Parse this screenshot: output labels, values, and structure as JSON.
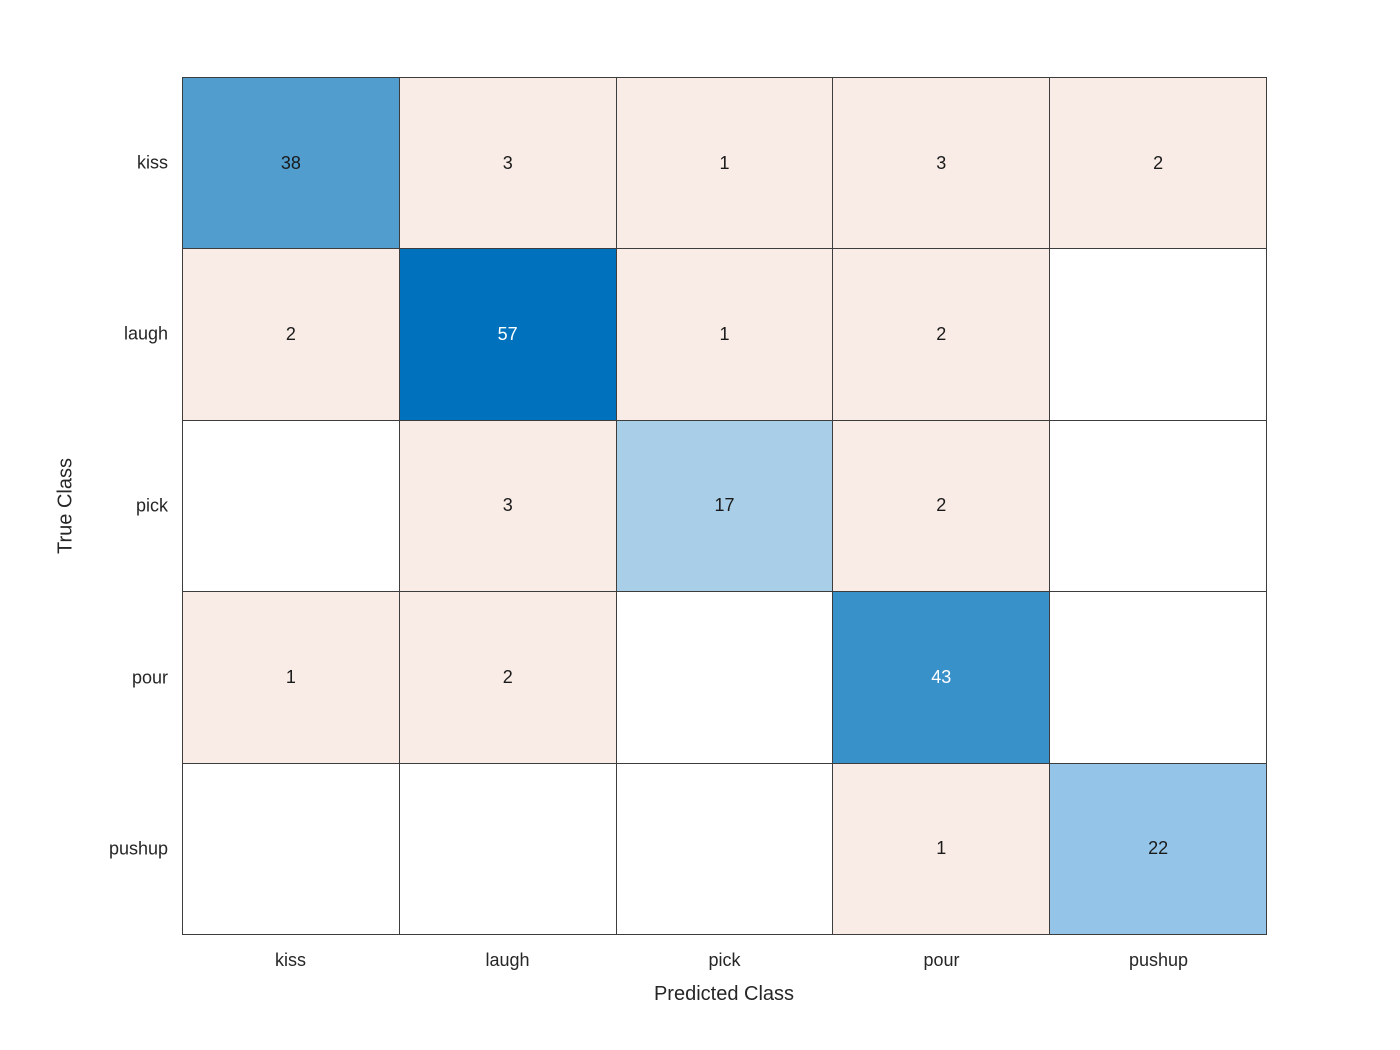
{
  "chart_data": {
    "type": "heatmap",
    "subtype": "confusion-matrix",
    "title": "",
    "xlabel": "Predicted Class",
    "ylabel": "True Class",
    "classes": [
      "kiss",
      "laugh",
      "pick",
      "pour",
      "pushup"
    ],
    "rows_are": "true-class",
    "columns_are": "predicted-class",
    "matrix": [
      [
        38,
        3,
        1,
        3,
        2
      ],
      [
        2,
        57,
        1,
        2,
        null
      ],
      [
        null,
        3,
        17,
        2,
        null
      ],
      [
        1,
        2,
        null,
        43,
        null
      ],
      [
        null,
        null,
        null,
        1,
        22
      ]
    ],
    "cell_colors": [
      [
        "#509dce",
        "#f9ece6",
        "#f9ece6",
        "#f9ece6",
        "#f9ece6"
      ],
      [
        "#f9ece6",
        "#0072bd",
        "#f9ece6",
        "#f9ece6",
        "#ffffff"
      ],
      [
        "#ffffff",
        "#f9ece6",
        "#a9cfe8",
        "#f9ece6",
        "#ffffff"
      ],
      [
        "#f9ece6",
        "#f9ece6",
        "#ffffff",
        "#3991c9",
        "#ffffff"
      ],
      [
        "#ffffff",
        "#ffffff",
        "#ffffff",
        "#f9ece6",
        "#94c5e8"
      ]
    ],
    "text_colors": [
      [
        "#1a1a1a",
        "#1a1a1a",
        "#1a1a1a",
        "#1a1a1a",
        "#1a1a1a"
      ],
      [
        "#1a1a1a",
        "#ffffff",
        "#1a1a1a",
        "#1a1a1a",
        "#1a1a1a"
      ],
      [
        "#1a1a1a",
        "#1a1a1a",
        "#1a1a1a",
        "#1a1a1a",
        "#1a1a1a"
      ],
      [
        "#1a1a1a",
        "#1a1a1a",
        "#1a1a1a",
        "#ffffff",
        "#1a1a1a"
      ],
      [
        "#1a1a1a",
        "#1a1a1a",
        "#1a1a1a",
        "#1a1a1a",
        "#1a1a1a"
      ]
    ],
    "layout": {
      "grid_on": true,
      "grid_line_color": "#3d3d3d",
      "diagonal_max_color": "#0072bd",
      "off_diagonal_color": "#f9ece6",
      "empty_cell_color": "#ffffff",
      "background": "#ffffff"
    }
  }
}
